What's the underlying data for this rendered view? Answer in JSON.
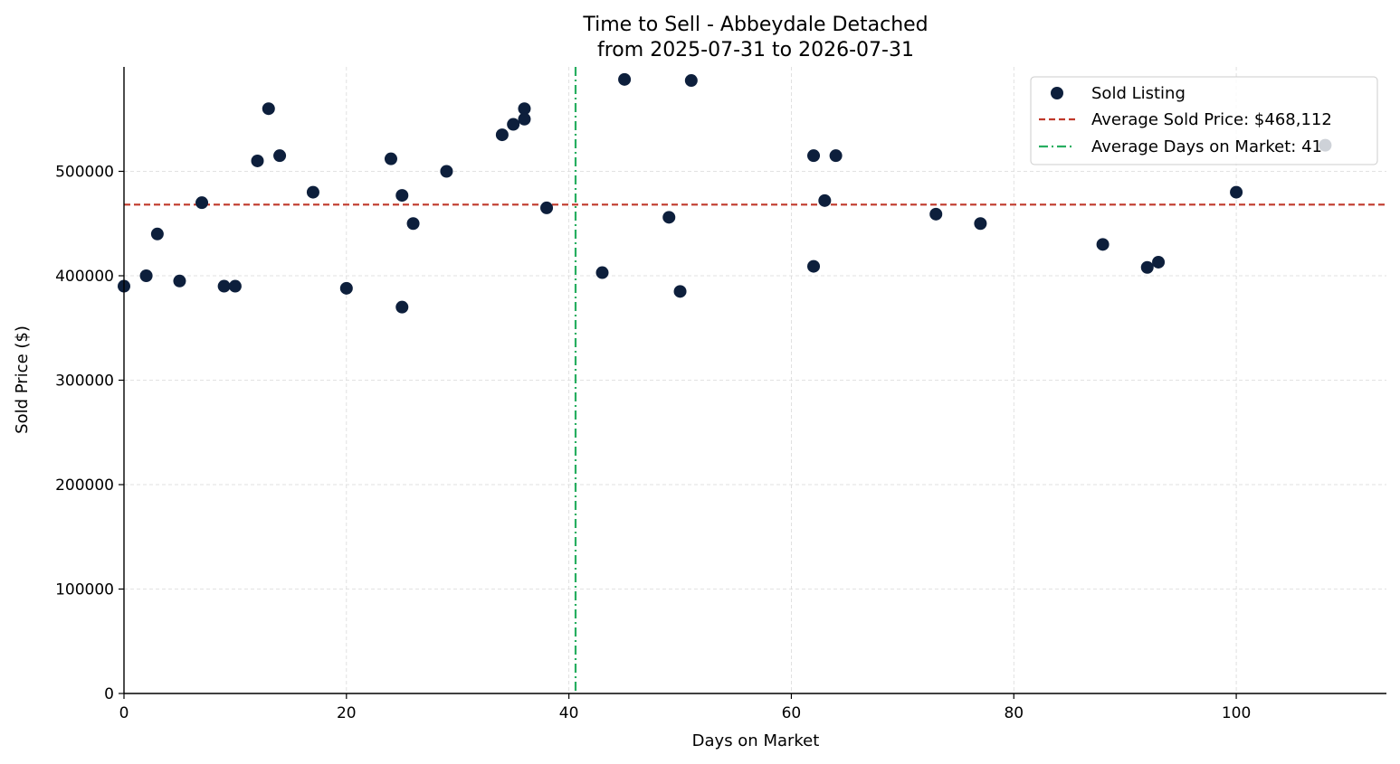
{
  "chart_data": {
    "type": "scatter",
    "title": "Time to Sell - Abbeydale Detached",
    "subtitle": "from 2025-07-31 to 2026-07-31",
    "xlabel": "Days on Market",
    "ylabel": "Sold Price ($)",
    "xlim": [
      0,
      113.5
    ],
    "ylim": [
      0,
      600000
    ],
    "xticks": [
      0,
      20,
      40,
      60,
      80,
      100
    ],
    "yticks": [
      0,
      100000,
      200000,
      300000,
      400000,
      500000
    ],
    "grid": true,
    "legend_position": "top-right",
    "colors": {
      "points": "#0d1f3c",
      "avg_price": "#c0392b",
      "avg_days": "#27ae60",
      "grid": "#d9d9d9"
    },
    "series": [
      {
        "name": "Sold Listing",
        "points": [
          [
            0,
            390000
          ],
          [
            2,
            400000
          ],
          [
            3,
            440000
          ],
          [
            5,
            395000
          ],
          [
            7,
            470000
          ],
          [
            9,
            390000
          ],
          [
            10,
            390000
          ],
          [
            12,
            510000
          ],
          [
            13,
            560000
          ],
          [
            14,
            515000
          ],
          [
            17,
            480000
          ],
          [
            20,
            388000
          ],
          [
            24,
            512000
          ],
          [
            25,
            477000
          ],
          [
            25,
            370000
          ],
          [
            26,
            450000
          ],
          [
            29,
            500000
          ],
          [
            34,
            535000
          ],
          [
            35,
            545000
          ],
          [
            36,
            560000
          ],
          [
            36,
            550000
          ],
          [
            38,
            465000
          ],
          [
            43,
            403000
          ],
          [
            45,
            588000
          ],
          [
            49,
            456000
          ],
          [
            50,
            385000
          ],
          [
            51,
            587000
          ],
          [
            62,
            515000
          ],
          [
            62,
            409000
          ],
          [
            63,
            472000
          ],
          [
            64,
            515000
          ],
          [
            73,
            459000
          ],
          [
            77,
            450000
          ],
          [
            88,
            430000
          ],
          [
            92,
            408000
          ],
          [
            93,
            413000
          ],
          [
            100,
            480000
          ],
          [
            108,
            525000
          ]
        ]
      }
    ],
    "reference_lines": {
      "avg_price": {
        "label": "Average Sold Price: $468,112",
        "value": 468112
      },
      "avg_days": {
        "label": "Average Days on Market: 41",
        "value": 40.6
      }
    }
  }
}
